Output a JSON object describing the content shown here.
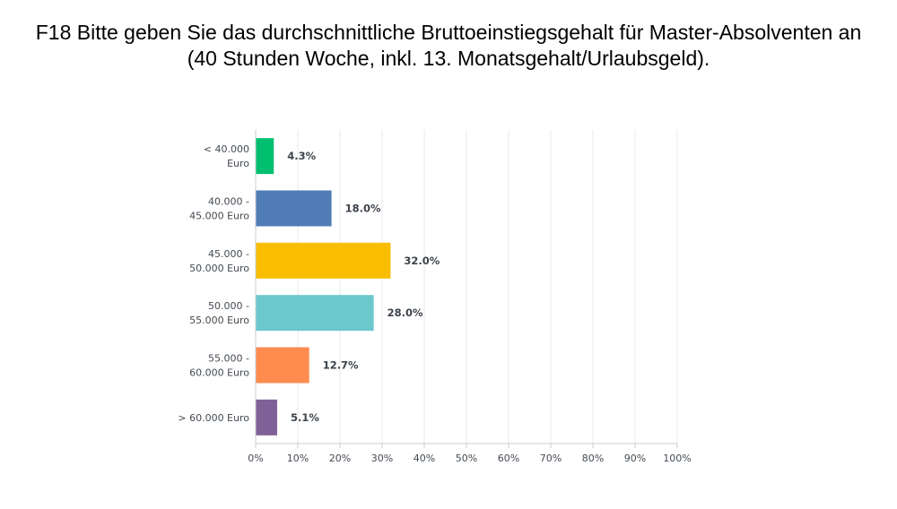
{
  "chart_data": {
    "type": "bar",
    "orientation": "horizontal",
    "title_lines": [
      "F18 Bitte geben Sie das durchschnittliche Bruttoeinstiegsgehalt für Master-Absolventen an",
      "(40 Stunden Woche, inkl. 13. Monatsgehalt/Urlaubsgeld)."
    ],
    "categories": [
      [
        "< 40.000",
        "Euro"
      ],
      [
        "40.000 -",
        "45.000 Euro"
      ],
      [
        "45.000 -",
        "50.000 Euro"
      ],
      [
        "50.000 -",
        "55.000 Euro"
      ],
      [
        "55.000 -",
        "60.000 Euro"
      ],
      [
        "> 60.000 Euro"
      ]
    ],
    "values": [
      4.3,
      18.0,
      32.0,
      28.0,
      12.7,
      5.1
    ],
    "value_labels": [
      "4.3%",
      "18.0%",
      "32.0%",
      "28.0%",
      "12.7%",
      "5.1%"
    ],
    "colors": [
      "#00bf6f",
      "#507cb6",
      "#f9be00",
      "#6bc8cd",
      "#ff8b4f",
      "#7f6197"
    ],
    "xlim": [
      0,
      100
    ],
    "xticks": [
      "0%",
      "10%",
      "20%",
      "30%",
      "40%",
      "50%",
      "60%",
      "70%",
      "80%",
      "90%",
      "100%"
    ],
    "grid": true,
    "legend": "none"
  }
}
